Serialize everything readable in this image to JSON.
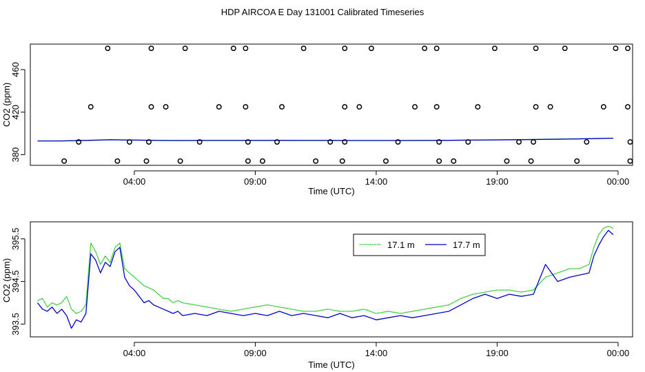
{
  "title": "HDP AIRCOA E  Day 131001  Calibrated Timeseries",
  "colors": {
    "green": "#00c000",
    "blue": "#0000cc",
    "axis": "#000000"
  },
  "chart_data": [
    {
      "type": "scatter",
      "title": "",
      "xlabel": "Time (UTC)",
      "ylabel": "CO2 (ppm)",
      "x_unit": "hours",
      "xlim": [
        -0.3,
        24.6
      ],
      "ylim": [
        370,
        484
      ],
      "x_ticks": [
        {
          "value": 4,
          "label": "04:00"
        },
        {
          "value": 9,
          "label": "09:00"
        },
        {
          "value": 14,
          "label": "14:00"
        },
        {
          "value": 19,
          "label": "19:00"
        },
        {
          "value": 24,
          "label": "00:00"
        }
      ],
      "y_ticks": [
        {
          "value": 380,
          "label": "380"
        },
        {
          "value": 420,
          "label": "420"
        },
        {
          "value": 460,
          "label": "460"
        }
      ],
      "grid": false,
      "calibration_points": [
        {
          "x": 2.9,
          "y": 480
        },
        {
          "x": 4.7,
          "y": 480
        },
        {
          "x": 6.1,
          "y": 480
        },
        {
          "x": 8.1,
          "y": 480
        },
        {
          "x": 8.6,
          "y": 480
        },
        {
          "x": 11.0,
          "y": 480
        },
        {
          "x": 12.7,
          "y": 480
        },
        {
          "x": 13.8,
          "y": 480
        },
        {
          "x": 16.0,
          "y": 480
        },
        {
          "x": 16.5,
          "y": 480
        },
        {
          "x": 18.9,
          "y": 480
        },
        {
          "x": 20.6,
          "y": 480
        },
        {
          "x": 21.8,
          "y": 480
        },
        {
          "x": 23.9,
          "y": 480
        },
        {
          "x": 24.4,
          "y": 480
        },
        {
          "x": 2.2,
          "y": 425
        },
        {
          "x": 4.7,
          "y": 425
        },
        {
          "x": 5.3,
          "y": 425
        },
        {
          "x": 7.5,
          "y": 425
        },
        {
          "x": 8.6,
          "y": 425
        },
        {
          "x": 10.1,
          "y": 425
        },
        {
          "x": 12.7,
          "y": 425
        },
        {
          "x": 13.3,
          "y": 425
        },
        {
          "x": 15.6,
          "y": 425
        },
        {
          "x": 16.5,
          "y": 425
        },
        {
          "x": 18.2,
          "y": 425
        },
        {
          "x": 20.6,
          "y": 425
        },
        {
          "x": 21.2,
          "y": 425
        },
        {
          "x": 23.4,
          "y": 425
        },
        {
          "x": 24.4,
          "y": 425
        },
        {
          "x": 1.7,
          "y": 392
        },
        {
          "x": 3.8,
          "y": 392
        },
        {
          "x": 4.6,
          "y": 392
        },
        {
          "x": 6.7,
          "y": 392
        },
        {
          "x": 8.7,
          "y": 392
        },
        {
          "x": 9.9,
          "y": 392
        },
        {
          "x": 12.1,
          "y": 392
        },
        {
          "x": 12.7,
          "y": 392
        },
        {
          "x": 14.9,
          "y": 392
        },
        {
          "x": 16.6,
          "y": 392
        },
        {
          "x": 17.8,
          "y": 392
        },
        {
          "x": 19.9,
          "y": 392
        },
        {
          "x": 20.5,
          "y": 392
        },
        {
          "x": 22.7,
          "y": 392
        },
        {
          "x": 24.5,
          "y": 392
        },
        {
          "x": 1.1,
          "y": 374
        },
        {
          "x": 3.3,
          "y": 374
        },
        {
          "x": 4.5,
          "y": 374
        },
        {
          "x": 5.9,
          "y": 374
        },
        {
          "x": 8.7,
          "y": 374
        },
        {
          "x": 9.3,
          "y": 374
        },
        {
          "x": 11.5,
          "y": 374
        },
        {
          "x": 12.6,
          "y": 374
        },
        {
          "x": 14.4,
          "y": 374
        },
        {
          "x": 16.6,
          "y": 374
        },
        {
          "x": 17.2,
          "y": 374
        },
        {
          "x": 19.4,
          "y": 374
        },
        {
          "x": 20.4,
          "y": 374
        },
        {
          "x": 22.3,
          "y": 374
        },
        {
          "x": 24.5,
          "y": 374
        }
      ],
      "series": [
        {
          "name": "17.1 m",
          "color": "#00c000",
          "x": [
            0,
            1,
            2,
            2.5,
            3,
            4,
            5,
            6,
            7,
            8,
            9,
            10,
            11,
            12,
            13,
            14,
            15,
            16,
            17,
            18,
            19,
            20,
            21,
            22,
            23,
            23.8
          ],
          "values": [
            393,
            393,
            393.5,
            393.8,
            394.1,
            393.8,
            393.5,
            393.4,
            393.5,
            393.5,
            393.5,
            393.6,
            393.5,
            393.5,
            393.4,
            393.4,
            393.4,
            393.5,
            393.6,
            393.8,
            394.0,
            394.2,
            394.5,
            394.8,
            395.2,
            395.6
          ]
        },
        {
          "name": "17.7 m",
          "color": "#0000cc",
          "x": [
            0,
            1,
            2,
            2.5,
            3,
            4,
            5,
            6,
            7,
            8,
            9,
            10,
            11,
            12,
            13,
            14,
            15,
            16,
            17,
            18,
            19,
            20,
            21,
            22,
            23,
            23.8
          ],
          "values": [
            392.9,
            392.9,
            393.4,
            393.7,
            394.0,
            393.7,
            393.4,
            393.3,
            393.4,
            393.4,
            393.4,
            393.5,
            393.4,
            393.4,
            393.3,
            393.3,
            393.3,
            393.4,
            393.5,
            393.7,
            393.9,
            394.1,
            394.4,
            394.7,
            395.1,
            395.5
          ]
        }
      ]
    },
    {
      "type": "line",
      "title": "",
      "xlabel": "Time (UTC)",
      "ylabel": "CO2 (ppm)",
      "x_unit": "hours",
      "xlim": [
        -0.3,
        24.6
      ],
      "ylim": [
        393.2,
        395.9
      ],
      "x_ticks": [
        {
          "value": 4,
          "label": "04:00"
        },
        {
          "value": 9,
          "label": "09:00"
        },
        {
          "value": 14,
          "label": "14:00"
        },
        {
          "value": 19,
          "label": "19:00"
        },
        {
          "value": 24,
          "label": "00:00"
        }
      ],
      "y_ticks": [
        {
          "value": 393.5,
          "label": "393.5"
        },
        {
          "value": 394.5,
          "label": "394.5"
        },
        {
          "value": 395.5,
          "label": "395.5"
        }
      ],
      "grid": false,
      "legend_position": "top-right",
      "series": [
        {
          "name": "17.1 m",
          "color": "#00c000",
          "x": [
            0.0,
            0.2,
            0.4,
            0.6,
            0.8,
            1.0,
            1.2,
            1.4,
            1.6,
            1.8,
            2.0,
            2.2,
            2.4,
            2.6,
            2.8,
            3.0,
            3.2,
            3.4,
            3.6,
            3.8,
            4.0,
            4.2,
            4.4,
            4.6,
            4.8,
            5.0,
            5.2,
            5.4,
            5.6,
            5.8,
            6.0,
            6.5,
            7.0,
            7.5,
            8.0,
            8.5,
            9.0,
            9.5,
            10.0,
            10.5,
            11.0,
            11.5,
            12.0,
            12.5,
            13.0,
            13.5,
            14.0,
            14.5,
            15.0,
            15.5,
            16.0,
            16.5,
            17.0,
            17.5,
            18.0,
            18.5,
            19.0,
            19.5,
            20.0,
            20.5,
            21.0,
            21.5,
            22.0,
            22.4,
            22.8,
            23.0,
            23.2,
            23.4,
            23.6,
            23.8
          ],
          "values": [
            394.05,
            394.1,
            393.9,
            394.0,
            393.95,
            394.0,
            394.15,
            393.85,
            393.75,
            393.8,
            393.95,
            395.4,
            395.2,
            394.9,
            395.1,
            394.95,
            395.3,
            395.4,
            394.8,
            394.7,
            394.6,
            394.5,
            394.4,
            394.35,
            394.3,
            394.2,
            394.1,
            394.1,
            394.0,
            394.05,
            394.0,
            393.95,
            393.9,
            393.85,
            393.8,
            393.85,
            393.9,
            393.95,
            393.9,
            393.85,
            393.8,
            393.8,
            393.85,
            393.8,
            393.8,
            393.85,
            393.75,
            393.8,
            393.75,
            393.8,
            393.85,
            393.9,
            393.95,
            394.1,
            394.2,
            394.25,
            394.3,
            394.3,
            394.25,
            394.3,
            394.6,
            394.7,
            394.8,
            394.8,
            394.9,
            395.3,
            395.6,
            395.75,
            395.8,
            395.75
          ]
        },
        {
          "name": "17.7 m",
          "color": "#0000cc",
          "x": [
            0.0,
            0.2,
            0.4,
            0.6,
            0.8,
            1.0,
            1.2,
            1.4,
            1.6,
            1.8,
            2.0,
            2.2,
            2.4,
            2.6,
            2.8,
            3.0,
            3.2,
            3.4,
            3.6,
            3.8,
            4.0,
            4.2,
            4.4,
            4.6,
            4.8,
            5.0,
            5.2,
            5.4,
            5.6,
            5.8,
            6.0,
            6.5,
            7.0,
            7.5,
            8.0,
            8.5,
            9.0,
            9.5,
            10.0,
            10.5,
            11.0,
            11.5,
            12.0,
            12.5,
            13.0,
            13.5,
            14.0,
            14.5,
            15.0,
            15.5,
            16.0,
            16.5,
            17.0,
            17.5,
            18.0,
            18.5,
            19.0,
            19.5,
            20.0,
            20.5,
            21.0,
            21.5,
            22.0,
            22.4,
            22.8,
            23.0,
            23.2,
            23.4,
            23.6,
            23.8
          ],
          "values": [
            394.0,
            393.85,
            393.8,
            393.9,
            393.75,
            393.85,
            393.7,
            393.4,
            393.6,
            393.55,
            393.75,
            395.15,
            395.0,
            394.7,
            394.95,
            394.85,
            395.2,
            395.3,
            394.6,
            394.4,
            394.3,
            394.15,
            394.0,
            394.05,
            393.95,
            393.9,
            393.85,
            393.8,
            393.75,
            393.8,
            393.7,
            393.75,
            393.7,
            393.8,
            393.75,
            393.7,
            393.75,
            393.7,
            393.8,
            393.7,
            393.75,
            393.7,
            393.65,
            393.75,
            393.65,
            393.7,
            393.6,
            393.65,
            393.7,
            393.65,
            393.7,
            393.75,
            393.8,
            393.95,
            394.1,
            394.2,
            394.1,
            394.2,
            394.15,
            394.2,
            394.9,
            394.5,
            394.6,
            394.65,
            394.7,
            395.1,
            395.35,
            395.55,
            395.7,
            395.6
          ]
        }
      ]
    }
  ]
}
